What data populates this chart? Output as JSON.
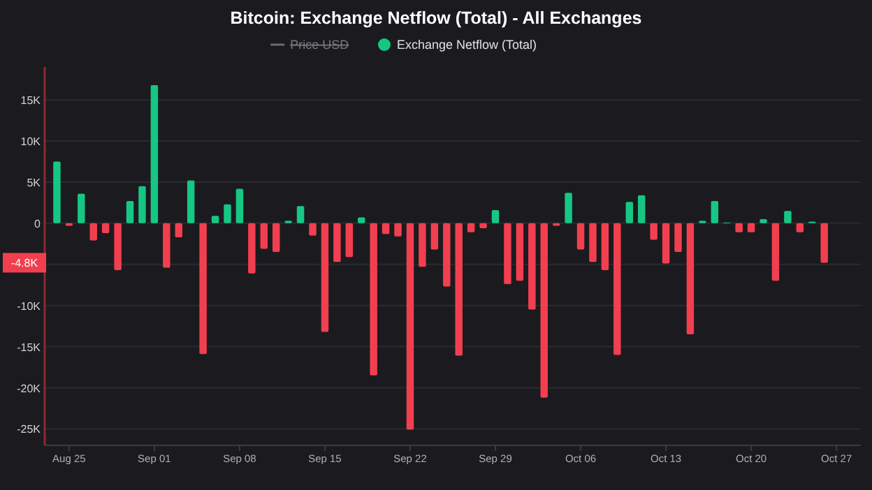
{
  "chart_data": {
    "type": "bar",
    "title": "Bitcoin: Exchange Netflow (Total) - All Exchanges",
    "x": [
      "--08-24",
      "--08-25",
      "--08-26",
      "--08-27",
      "--08-28",
      "--08-29",
      "--08-30",
      "--08-31",
      "--09-01",
      "--09-02",
      "--09-03",
      "--09-04",
      "--09-05",
      "--09-06",
      "--09-07",
      "--09-08",
      "--09-09",
      "--09-10",
      "--09-11",
      "--09-12",
      "--09-13",
      "--09-14",
      "--09-15",
      "--09-16",
      "--09-17",
      "--09-18",
      "--09-19",
      "--09-20",
      "--09-21",
      "--09-22",
      "--09-23",
      "--09-24",
      "--09-25",
      "--09-26",
      "--09-27",
      "--09-28",
      "--09-29",
      "--09-30",
      "--10-01",
      "--10-02",
      "--10-03",
      "--10-04",
      "--10-05",
      "--10-06",
      "--10-07",
      "--10-08",
      "--10-09",
      "--10-10",
      "--10-11",
      "--10-12",
      "--10-13",
      "--10-14",
      "--10-15",
      "--10-16",
      "--10-17",
      "--10-18",
      "--10-19",
      "--10-20",
      "--10-21",
      "--10-22",
      "--10-23",
      "--10-24",
      "--10-25",
      "--10-26"
    ],
    "series": [
      {
        "name": "Price USD",
        "type": "line",
        "color": "#6b6b73",
        "values": [
          null,
          null,
          null,
          null,
          null,
          null,
          null,
          null,
          null,
          null,
          null,
          null,
          null,
          null,
          null,
          null,
          null,
          null,
          null,
          null,
          null,
          null,
          null,
          null,
          null,
          null,
          null,
          null,
          null,
          null,
          null,
          null,
          null,
          null,
          null,
          null,
          null,
          null,
          null,
          null,
          null,
          null,
          null,
          null,
          null,
          null,
          null,
          null,
          null,
          null,
          null,
          null,
          null,
          null,
          null,
          null,
          null,
          null,
          null,
          null,
          null,
          null,
          null,
          null
        ]
      },
      {
        "name": "Exchange Netflow (Total)",
        "color": "#16c784",
        "values": [
          7.5,
          -0.3,
          3.6,
          -2.1,
          -1.2,
          -5.7,
          2.7,
          4.5,
          16.8,
          -5.4,
          -1.7,
          5.2,
          -15.9,
          0.9,
          2.3,
          4.2,
          -6.1,
          -3.1,
          -3.5,
          0.3,
          2.1,
          -1.5,
          -13.2,
          -4.7,
          -4.1,
          0.7,
          -18.5,
          -1.3,
          -1.6,
          -25.1,
          -5.3,
          -3.2,
          -7.7,
          -16.1,
          -1.1,
          -0.6,
          1.6,
          -7.4,
          -7.0,
          -10.5,
          -21.2,
          -0.3,
          3.7,
          -3.2,
          -4.7,
          -5.7,
          -16.0,
          2.6,
          3.4,
          -2.0,
          -4.9,
          -3.5,
          -13.5,
          0.3,
          2.7,
          0.1,
          -1.1,
          -1.1,
          0.5,
          -7.0,
          1.5,
          -1.1,
          0.2,
          -4.8
        ],
        "colors": [
          "#16c784",
          "#f23f4f",
          "#16c784",
          "#f23f4f",
          "#f23f4f",
          "#f23f4f",
          "#16c784",
          "#16c784",
          "#16c784",
          "#f23f4f",
          "#f23f4f",
          "#16c784",
          "#f23f4f",
          "#16c784",
          "#16c784",
          "#16c784",
          "#f23f4f",
          "#f23f4f",
          "#f23f4f",
          "#16c784",
          "#16c784",
          "#f23f4f",
          "#f23f4f",
          "#f23f4f",
          "#f23f4f",
          "#16c784",
          "#f23f4f",
          "#f23f4f",
          "#f23f4f",
          "#f23f4f",
          "#f23f4f",
          "#f23f4f",
          "#f23f4f",
          "#f23f4f",
          "#f23f4f",
          "#f23f4f",
          "#16c784",
          "#f23f4f",
          "#f23f4f",
          "#f23f4f",
          "#f23f4f",
          "#f23f4f",
          "#16c784",
          "#f23f4f",
          "#f23f4f",
          "#f23f4f",
          "#f23f4f",
          "#16c784",
          "#16c784",
          "#f23f4f",
          "#f23f4f",
          "#f23f4f",
          "#f23f4f",
          "#16c784",
          "#16c784",
          "#16c784",
          "#f23f4f",
          "#f23f4f",
          "#16c784",
          "#f23f4f",
          "#16c784",
          "#f23f4f",
          "#16c784",
          "#f23f4f"
        ]
      }
    ],
    "xlim": [
      "--08-23",
      "--10-29"
    ],
    "xticks": [
      {
        "value": "--08-25",
        "label": "Aug 25"
      },
      {
        "value": "--09-01",
        "label": "Sep 01"
      },
      {
        "value": "--09-08",
        "label": "Sep 08"
      },
      {
        "value": "--09-15",
        "label": "Sep 15"
      },
      {
        "value": "--09-22",
        "label": "Sep 22"
      },
      {
        "value": "--09-29",
        "label": "Sep 29"
      },
      {
        "value": "--10-06",
        "label": "Oct 06"
      },
      {
        "value": "--10-13",
        "label": "Oct 13"
      },
      {
        "value": "--10-20",
        "label": "Oct 20"
      },
      {
        "value": "--10-27",
        "label": "Oct 27"
      }
    ],
    "ylim": [
      -27,
      19
    ],
    "yticks": [
      {
        "value": -25,
        "label": "-25K"
      },
      {
        "value": -20,
        "label": "-20K"
      },
      {
        "value": -15,
        "label": "-15K"
      },
      {
        "value": -10,
        "label": "-10K"
      },
      {
        "value": -5,
        "label": null
      },
      0,
      {
        "value": 5,
        "label": "5K"
      },
      {
        "value": 10,
        "label": "10K"
      },
      {
        "value": 15,
        "label": "15K"
      }
    ],
    "annotations": [
      {
        "text": "-4.8K",
        "y": -4.8
      }
    ],
    "grid": "y",
    "legend": "top"
  }
}
